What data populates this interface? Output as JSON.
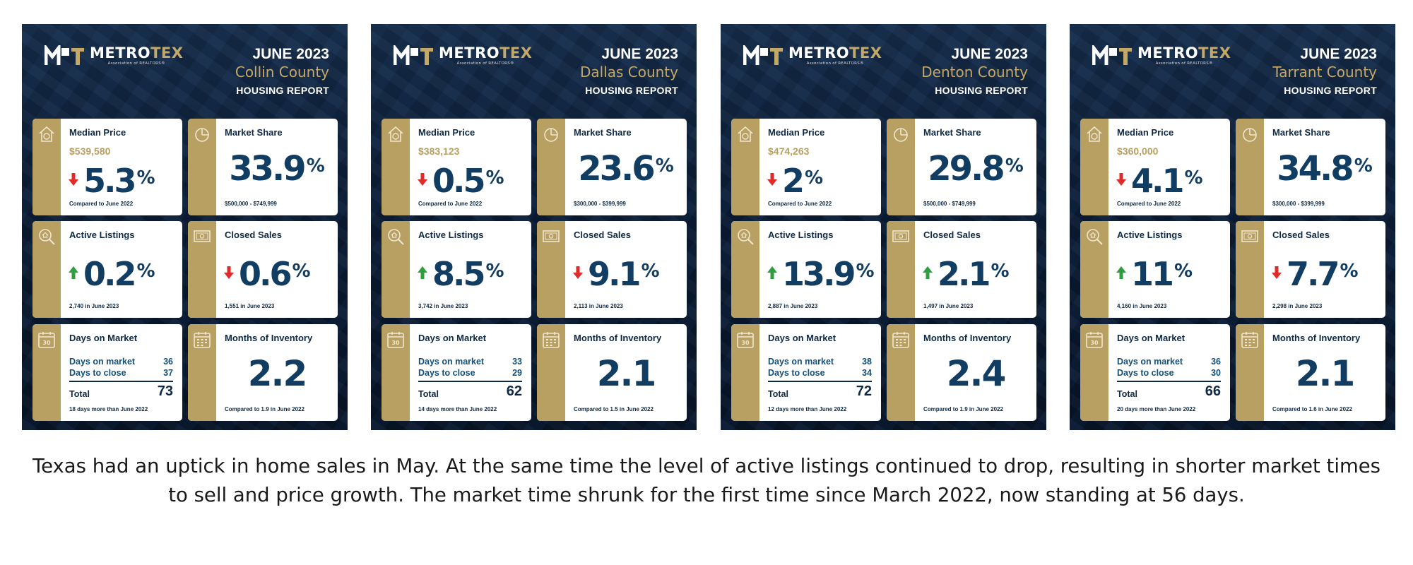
{
  "brand": {
    "name_part1": "METRO",
    "name_part2": "TEX",
    "tagline": "Association of REALTORS®"
  },
  "reports": [
    {
      "month": "JUNE 2023",
      "county": "Collin County",
      "report_title": "HOUSING REPORT",
      "median_price": {
        "title": "Median Price",
        "price": "$539,580",
        "direction": "down",
        "value": "5.3",
        "unit": "%",
        "note": "Compared to June 2022"
      },
      "market_share": {
        "title": "Market Share",
        "value": "33.9",
        "unit": "%",
        "note": "$500,000 - $749,999"
      },
      "active_listings": {
        "title": "Active Listings",
        "direction": "up",
        "value": "0.2",
        "unit": "%",
        "note": "2,740 in June 2023"
      },
      "closed_sales": {
        "title": "Closed Sales",
        "direction": "down",
        "value": "0.6",
        "unit": "%",
        "note": "1,551 in June 2023"
      },
      "days_on_market": {
        "title": "Days on Market",
        "dom_label": "Days on market",
        "dom_value": "36",
        "close_label": "Days to close",
        "close_value": "37",
        "total_label": "Total",
        "total_value": "73",
        "note": "18 days more than June 2022"
      },
      "months_inventory": {
        "title": "Months of Inventory",
        "value": "2.2",
        "note": "Compared to 1.9 in June 2022"
      }
    },
    {
      "month": "JUNE 2023",
      "county": "Dallas County",
      "report_title": "HOUSING REPORT",
      "median_price": {
        "title": "Median Price",
        "price": "$383,123",
        "direction": "down",
        "value": "0.5",
        "unit": "%",
        "note": "Compared to June 2022"
      },
      "market_share": {
        "title": "Market Share",
        "value": "23.6",
        "unit": "%",
        "note": "$300,000 - $399,999"
      },
      "active_listings": {
        "title": "Active Listings",
        "direction": "up",
        "value": "8.5",
        "unit": "%",
        "note": "3,742 in June 2023"
      },
      "closed_sales": {
        "title": "Closed Sales",
        "direction": "down",
        "value": "9.1",
        "unit": "%",
        "note": "2,113 in June 2023"
      },
      "days_on_market": {
        "title": "Days on Market",
        "dom_label": "Days on market",
        "dom_value": "33",
        "close_label": "Days to close",
        "close_value": "29",
        "total_label": "Total",
        "total_value": "62",
        "note": "14 days more than June 2022"
      },
      "months_inventory": {
        "title": "Months of Inventory",
        "value": "2.1",
        "note": "Compared to 1.5 in June 2022"
      }
    },
    {
      "month": "JUNE 2023",
      "county": "Denton County",
      "report_title": "HOUSING REPORT",
      "median_price": {
        "title": "Median Price",
        "price": "$474,263",
        "direction": "down",
        "value": "2",
        "unit": "%",
        "note": "Compared to June 2022"
      },
      "market_share": {
        "title": "Market Share",
        "value": "29.8",
        "unit": "%",
        "note": "$500,000 - $749,999"
      },
      "active_listings": {
        "title": "Active Listings",
        "direction": "up",
        "value": "13.9",
        "unit": "%",
        "note": "2,887 in June 2023"
      },
      "closed_sales": {
        "title": "Closed Sales",
        "direction": "up",
        "value": "2.1",
        "unit": "%",
        "note": "1,497 in June 2023"
      },
      "days_on_market": {
        "title": "Days on Market",
        "dom_label": "Days on market",
        "dom_value": "38",
        "close_label": "Days to close",
        "close_value": "34",
        "total_label": "Total",
        "total_value": "72",
        "note": "12 days more than June 2022"
      },
      "months_inventory": {
        "title": "Months of Inventory",
        "value": "2.4",
        "note": "Compared to 1.9 in June 2022"
      }
    },
    {
      "month": "JUNE 2023",
      "county": "Tarrant County",
      "report_title": "HOUSING REPORT",
      "median_price": {
        "title": "Median Price",
        "price": "$360,000",
        "direction": "down",
        "value": "4.1",
        "unit": "%",
        "note": "Compared to June 2022"
      },
      "market_share": {
        "title": "Market Share",
        "value": "34.8",
        "unit": "%",
        "note": "$300,000 - $399,999"
      },
      "active_listings": {
        "title": "Active Listings",
        "direction": "up",
        "value": "11",
        "unit": "%",
        "note": "4,160 in June 2023"
      },
      "closed_sales": {
        "title": "Closed Sales",
        "direction": "down",
        "value": "7.7",
        "unit": "%",
        "note": "2,298 in June 2023"
      },
      "days_on_market": {
        "title": "Days on Market",
        "dom_label": "Days on market",
        "dom_value": "36",
        "close_label": "Days to close",
        "close_value": "30",
        "total_label": "Total",
        "total_value": "66",
        "note": "20 days more than June 2022"
      },
      "months_inventory": {
        "title": "Months of Inventory",
        "value": "2.1",
        "note": "Compared to 1.6 in June 2022"
      }
    }
  ],
  "colors": {
    "navy": "#0b1d36",
    "gold": "#b89f62",
    "value_blue": "#123d62",
    "arrow_up": "#2f9e3e",
    "arrow_down": "#e02b2b"
  },
  "icons": {
    "median_price": "house-dollar-icon",
    "market_share": "pie-chart-icon",
    "active_listings": "search-house-icon",
    "closed_sales": "cash-icon",
    "days_on_market": "calendar-30-icon",
    "months_inventory": "calendar-grid-icon"
  },
  "caption": "Texas had an uptick in home sales in May. At the same time the level of active listings continued to drop, resulting in shorter market times to sell and price growth. The market time shrunk for the first time since March 2022, now standing at 56 days."
}
